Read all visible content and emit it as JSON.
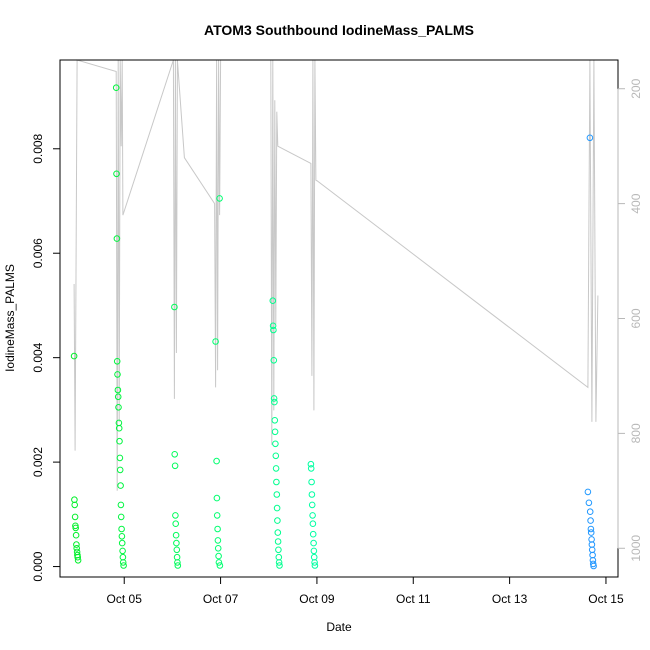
{
  "chart_data": {
    "type": "scatter",
    "title": "ATOM3 Southbound IodineMass_PALMS",
    "xlabel": "Date",
    "ylabel": "IodineMass_PALMS",
    "xlim": [
      "2017-10-03T16:00",
      "2017-10-15T06:00"
    ],
    "ylim": [
      -0.0002,
      0.0097
    ],
    "x_ticks": [
      {
        "date": "2017-10-05",
        "label": "Oct 05"
      },
      {
        "date": "2017-10-07",
        "label": "Oct 07"
      },
      {
        "date": "2017-10-09",
        "label": "Oct 09"
      },
      {
        "date": "2017-10-11",
        "label": "Oct 11"
      },
      {
        "date": "2017-10-13",
        "label": "Oct 13"
      },
      {
        "date": "2017-10-15",
        "label": "Oct 15"
      }
    ],
    "y_ticks": [
      {
        "value": 0.0,
        "label": "0.000"
      },
      {
        "value": 0.002,
        "label": "0.002"
      },
      {
        "value": 0.004,
        "label": "0.004"
      },
      {
        "value": 0.006,
        "label": "0.006"
      },
      {
        "value": 0.008,
        "label": "0.008"
      }
    ],
    "right_axis": {
      "reversed": true,
      "ylim": [
        1050,
        150
      ],
      "ticks": [
        {
          "value": 200,
          "label": "200"
        },
        {
          "value": 400,
          "label": "400"
        },
        {
          "value": 600,
          "label": "600"
        },
        {
          "value": 800,
          "label": "800"
        },
        {
          "value": 1000,
          "label": "1000"
        }
      ],
      "color": "#b8b8b8"
    },
    "point_color_by_time": [
      "#00ee22",
      "#00ff66",
      "#00ffb0",
      "#00c8ff",
      "#2a8cff"
    ],
    "flights": [
      {
        "points": [
          [
            "2017-10-03T23:00",
            0.00403
          ],
          [
            "2017-10-03T23:10",
            0.00128
          ],
          [
            "2017-10-03T23:20",
            0.00118
          ],
          [
            "2017-10-03T23:30",
            0.00095
          ],
          [
            "2017-10-03T23:40",
            0.00078
          ],
          [
            "2017-10-03T23:50",
            0.00074
          ],
          [
            "2017-10-04T00:00",
            0.0006
          ],
          [
            "2017-10-04T00:10",
            0.00042
          ],
          [
            "2017-10-04T00:20",
            0.00035
          ],
          [
            "2017-10-04T00:30",
            0.00028
          ],
          [
            "2017-10-04T00:40",
            0.00022
          ],
          [
            "2017-10-04T00:50",
            0.00018
          ],
          [
            "2017-10-04T01:00",
            0.00012
          ]
        ],
        "pressure": [
          [
            "2017-10-03T23:00",
            540
          ],
          [
            "2017-10-03T23:30",
            830
          ],
          [
            "2017-10-04T00:30",
            150
          ],
          [
            "2017-10-04T20:00",
            170
          ],
          [
            "2017-10-04T20:30",
            900
          ],
          [
            "2017-10-04T21:00",
            150
          ],
          [
            "2017-10-04T21:30",
            780
          ],
          [
            "2017-10-04T22:00",
            150
          ],
          [
            "2017-10-04T22:30",
            300
          ],
          [
            "2017-10-04T23:00",
            150
          ],
          [
            "2017-10-04T23:20",
            420
          ]
        ]
      },
      {
        "points": [
          [
            "2017-10-04T20:00",
            0.00917
          ],
          [
            "2017-10-04T20:10",
            0.00752
          ],
          [
            "2017-10-04T20:20",
            0.00628
          ],
          [
            "2017-10-04T20:30",
            0.00393
          ],
          [
            "2017-10-04T20:40",
            0.00368
          ],
          [
            "2017-10-04T20:50",
            0.00338
          ],
          [
            "2017-10-04T21:00",
            0.00325
          ],
          [
            "2017-10-04T21:10",
            0.00305
          ],
          [
            "2017-10-04T21:20",
            0.00275
          ],
          [
            "2017-10-04T21:30",
            0.00265
          ],
          [
            "2017-10-04T21:40",
            0.0024
          ],
          [
            "2017-10-04T21:50",
            0.00208
          ],
          [
            "2017-10-04T22:00",
            0.00185
          ],
          [
            "2017-10-04T22:10",
            0.00155
          ],
          [
            "2017-10-04T22:20",
            0.00118
          ],
          [
            "2017-10-04T22:30",
            0.00095
          ],
          [
            "2017-10-04T22:40",
            0.00072
          ],
          [
            "2017-10-04T22:50",
            0.00058
          ],
          [
            "2017-10-04T23:00",
            0.00045
          ],
          [
            "2017-10-04T23:10",
            0.0003
          ],
          [
            "2017-10-04T23:20",
            0.00018
          ],
          [
            "2017-10-04T23:30",
            8e-05
          ],
          [
            "2017-10-04T23:40",
            2e-05
          ]
        ],
        "pressure": []
      },
      {
        "points": [
          [
            "2017-10-06T01:00",
            0.00497
          ],
          [
            "2017-10-06T01:10",
            0.00215
          ],
          [
            "2017-10-06T01:20",
            0.00193
          ],
          [
            "2017-10-06T01:30",
            0.00098
          ],
          [
            "2017-10-06T01:40",
            0.00082
          ],
          [
            "2017-10-06T01:50",
            0.0006
          ],
          [
            "2017-10-06T02:00",
            0.00045
          ],
          [
            "2017-10-06T02:10",
            0.00032
          ],
          [
            "2017-10-06T02:20",
            0.00018
          ],
          [
            "2017-10-06T02:30",
            8e-05
          ],
          [
            "2017-10-06T02:40",
            2e-05
          ]
        ],
        "pressure": [
          [
            "2017-10-06T00:30",
            150
          ],
          [
            "2017-10-06T01:00",
            740
          ],
          [
            "2017-10-06T01:30",
            150
          ],
          [
            "2017-10-06T02:00",
            660
          ],
          [
            "2017-10-06T02:30",
            150
          ],
          [
            "2017-10-06T06:00",
            320
          ],
          [
            "2017-10-06T21:00",
            400
          ],
          [
            "2017-10-06T21:30",
            720
          ],
          [
            "2017-10-06T22:00",
            150
          ],
          [
            "2017-10-06T22:30",
            690
          ],
          [
            "2017-10-06T23:00",
            150
          ],
          [
            "2017-10-06T23:30",
            420
          ],
          [
            "2017-10-07T00:00",
            150
          ]
        ]
      },
      {
        "points": [
          [
            "2017-10-06T21:30",
            0.00431
          ],
          [
            "2017-10-06T22:00",
            0.00202
          ],
          [
            "2017-10-06T22:10",
            0.00131
          ],
          [
            "2017-10-06T22:20",
            0.00098
          ],
          [
            "2017-10-06T22:30",
            0.00072
          ],
          [
            "2017-10-06T22:40",
            0.0005
          ],
          [
            "2017-10-06T22:50",
            0.00035
          ],
          [
            "2017-10-06T23:00",
            0.0002
          ],
          [
            "2017-10-06T23:10",
            8e-05
          ],
          [
            "2017-10-06T23:30",
            0.00705
          ],
          [
            "2017-10-06T23:40",
            2e-05
          ]
        ],
        "pressure": []
      },
      {
        "points": [
          [
            "2017-10-08T02:00",
            0.00509
          ],
          [
            "2017-10-08T02:10",
            0.00461
          ],
          [
            "2017-10-08T02:20",
            0.00453
          ],
          [
            "2017-10-08T02:30",
            0.00395
          ],
          [
            "2017-10-08T02:40",
            0.00322
          ],
          [
            "2017-10-08T02:50",
            0.00315
          ],
          [
            "2017-10-08T03:00",
            0.0028
          ],
          [
            "2017-10-08T03:10",
            0.00258
          ],
          [
            "2017-10-08T03:20",
            0.00235
          ],
          [
            "2017-10-08T03:30",
            0.00212
          ],
          [
            "2017-10-08T03:40",
            0.00188
          ],
          [
            "2017-10-08T03:50",
            0.00162
          ],
          [
            "2017-10-08T04:00",
            0.00138
          ],
          [
            "2017-10-08T04:10",
            0.00112
          ],
          [
            "2017-10-08T04:20",
            0.00088
          ],
          [
            "2017-10-08T04:30",
            0.00065
          ],
          [
            "2017-10-08T04:40",
            0.00048
          ],
          [
            "2017-10-08T04:50",
            0.00032
          ],
          [
            "2017-10-08T05:00",
            0.00018
          ],
          [
            "2017-10-08T05:10",
            8e-05
          ],
          [
            "2017-10-08T05:20",
            2e-05
          ]
        ],
        "pressure": [
          [
            "2017-10-08T01:00",
            150
          ],
          [
            "2017-10-08T01:30",
            820
          ],
          [
            "2017-10-08T02:00",
            150
          ],
          [
            "2017-10-08T02:30",
            760
          ],
          [
            "2017-10-08T03:00",
            220
          ],
          [
            "2017-10-08T03:30",
            610
          ],
          [
            "2017-10-08T04:00",
            240
          ],
          [
            "2017-10-08T04:30",
            300
          ],
          [
            "2017-10-08T21:00",
            330
          ],
          [
            "2017-10-08T21:30",
            700
          ],
          [
            "2017-10-08T22:00",
            150
          ],
          [
            "2017-10-08T22:30",
            760
          ],
          [
            "2017-10-08T23:00",
            150
          ],
          [
            "2017-10-08T23:30",
            360
          ]
        ]
      },
      {
        "points": [
          [
            "2017-10-08T21:00",
            0.00196
          ],
          [
            "2017-10-08T21:10",
            0.00188
          ],
          [
            "2017-10-08T21:20",
            0.00162
          ],
          [
            "2017-10-08T21:30",
            0.00138
          ],
          [
            "2017-10-08T21:40",
            0.00118
          ],
          [
            "2017-10-08T21:50",
            0.00098
          ],
          [
            "2017-10-08T22:00",
            0.00082
          ],
          [
            "2017-10-08T22:10",
            0.00062
          ],
          [
            "2017-10-08T22:20",
            0.00045
          ],
          [
            "2017-10-08T22:30",
            0.0003
          ],
          [
            "2017-10-08T22:40",
            0.00018
          ],
          [
            "2017-10-08T22:50",
            8e-05
          ],
          [
            "2017-10-08T23:00",
            2e-05
          ]
        ],
        "pressure": [
          [
            "2017-10-09T00:00",
            360
          ],
          [
            "2017-10-14T15:00",
            720
          ],
          [
            "2017-10-14T16:00",
            150
          ],
          [
            "2017-10-14T17:00",
            780
          ],
          [
            "2017-10-14T18:00",
            150
          ],
          [
            "2017-10-14T19:00",
            780
          ],
          [
            "2017-10-14T20:00",
            560
          ]
        ]
      },
      {
        "points": [
          [
            "2017-10-14T15:00",
            0.00143
          ],
          [
            "2017-10-14T15:30",
            0.00122
          ],
          [
            "2017-10-14T16:00",
            0.00821
          ],
          [
            "2017-10-14T16:10",
            0.00105
          ],
          [
            "2017-10-14T16:20",
            0.00088
          ],
          [
            "2017-10-14T16:30",
            0.00072
          ],
          [
            "2017-10-14T16:40",
            0.00065
          ],
          [
            "2017-10-14T16:50",
            0.00052
          ],
          [
            "2017-10-14T17:00",
            0.00042
          ],
          [
            "2017-10-14T17:10",
            0.00032
          ],
          [
            "2017-10-14T17:20",
            0.00022
          ],
          [
            "2017-10-14T17:30",
            0.00012
          ],
          [
            "2017-10-14T17:40",
            5e-05
          ],
          [
            "2017-10-14T17:50",
            1e-05
          ]
        ],
        "pressure": []
      }
    ],
    "grid": false
  }
}
